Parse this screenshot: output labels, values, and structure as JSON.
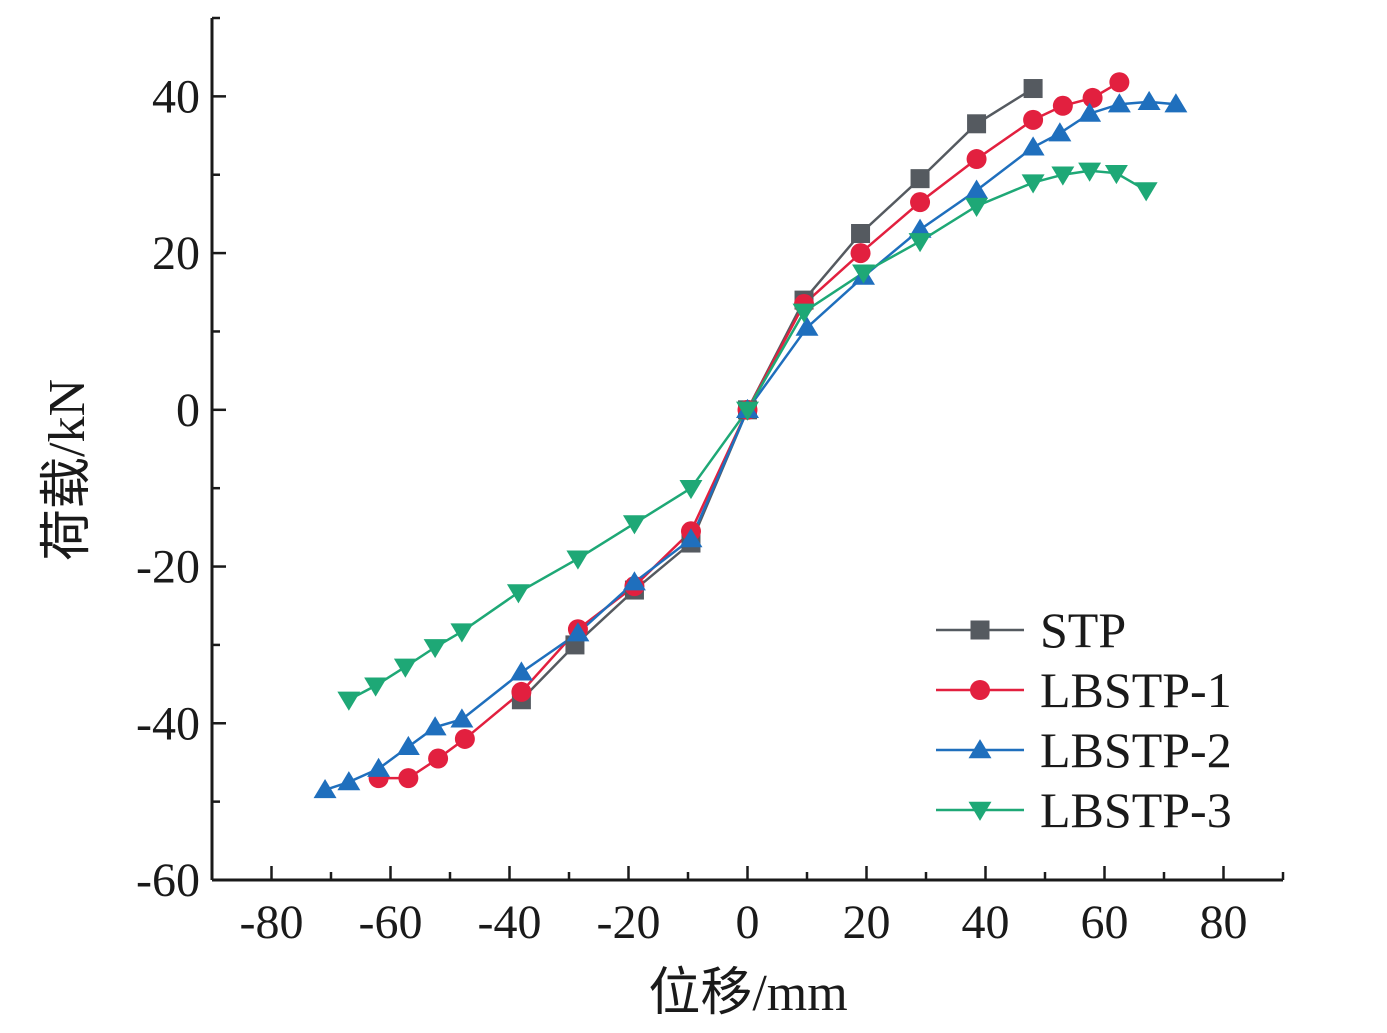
{
  "chart_data": {
    "type": "line",
    "xlabel": "位移/mm",
    "ylabel": "荷载/kN",
    "xlim": [
      -90,
      90
    ],
    "ylim": [
      -60,
      50
    ],
    "xticks": [
      -80,
      -60,
      -40,
      -20,
      0,
      20,
      40,
      60,
      80
    ],
    "yticks": [
      -60,
      -40,
      -20,
      0,
      20,
      40
    ],
    "legend_position": "bottom-right",
    "series": [
      {
        "name": "STP",
        "color": "#555a60",
        "marker": "square",
        "points": [
          [
            -38,
            -37
          ],
          [
            -29,
            -30
          ],
          [
            -19,
            -23
          ],
          [
            -9.5,
            -17
          ],
          [
            0,
            0
          ],
          [
            9.5,
            14
          ],
          [
            19,
            22.5
          ],
          [
            29,
            29.5
          ],
          [
            38.5,
            36.5
          ],
          [
            48,
            41
          ]
        ]
      },
      {
        "name": "LBSTP-1",
        "color": "#e2203f",
        "marker": "circle",
        "points": [
          [
            -62,
            -47
          ],
          [
            -57,
            -47
          ],
          [
            -52,
            -44.5
          ],
          [
            -47.5,
            -42
          ],
          [
            -38,
            -36
          ],
          [
            -28.5,
            -28
          ],
          [
            -19,
            -22.5
          ],
          [
            -9.5,
            -15.5
          ],
          [
            0,
            0
          ],
          [
            9.5,
            13.5
          ],
          [
            19,
            20
          ],
          [
            29,
            26.5
          ],
          [
            38.5,
            32
          ],
          [
            48,
            37
          ],
          [
            53,
            38.8
          ],
          [
            58,
            39.8
          ],
          [
            62.5,
            41.8
          ]
        ]
      },
      {
        "name": "LBSTP-2",
        "color": "#1f6fbd",
        "marker": "triangle-up",
        "points": [
          [
            -71,
            -48.5
          ],
          [
            -67,
            -47.5
          ],
          [
            -62,
            -45.8
          ],
          [
            -57,
            -43
          ],
          [
            -52.5,
            -40.5
          ],
          [
            -48,
            -39.5
          ],
          [
            -38,
            -33.5
          ],
          [
            -28.5,
            -28.5
          ],
          [
            -19,
            -22
          ],
          [
            -9.5,
            -16.5
          ],
          [
            0,
            0
          ],
          [
            10,
            10.5
          ],
          [
            19.5,
            17
          ],
          [
            29,
            23
          ],
          [
            38.5,
            28
          ],
          [
            48,
            33.5
          ],
          [
            52.5,
            35.3
          ],
          [
            57.5,
            37.8
          ],
          [
            62.5,
            39
          ],
          [
            67.5,
            39.3
          ],
          [
            72,
            39
          ]
        ]
      },
      {
        "name": "LBSTP-3",
        "color": "#1ea876",
        "marker": "triangle-down",
        "points": [
          [
            -67,
            -37
          ],
          [
            -62.5,
            -35.2
          ],
          [
            -57.5,
            -32.8
          ],
          [
            -52.5,
            -30.3
          ],
          [
            -48,
            -28.3
          ],
          [
            -38.5,
            -23.3
          ],
          [
            -28.5,
            -19
          ],
          [
            -19,
            -14.5
          ],
          [
            -9.5,
            -10
          ],
          [
            0,
            0
          ],
          [
            9.5,
            12.5
          ],
          [
            19.5,
            17.5
          ],
          [
            29,
            21.5
          ],
          [
            38.5,
            26
          ],
          [
            48,
            29
          ],
          [
            53,
            30
          ],
          [
            57.5,
            30.5
          ],
          [
            62,
            30.2
          ],
          [
            67,
            28
          ]
        ]
      }
    ]
  }
}
